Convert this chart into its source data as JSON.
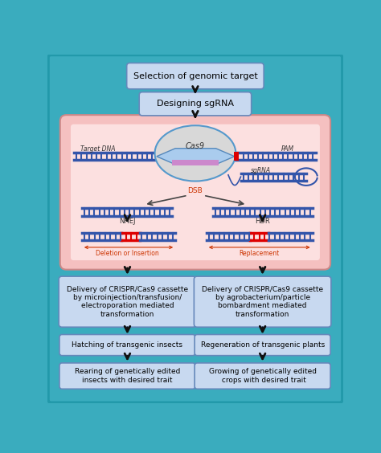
{
  "bg_color": "#3aacbe",
  "box_color": "#c8d9f0",
  "box_edge": "#6688bb",
  "pink_bg": "#f5b8b8",
  "cas9_fill": "#d8d8d8",
  "cas9_edge": "#5599cc",
  "dna_blue": "#3355aa",
  "dna_red": "#dd0000",
  "arrow_color": "#111111",
  "title": "Selection of genomic target",
  "step2": "Designing sgRNA",
  "box_left_1": "Delivery of CRISPR/Cas9 cassette\nby microinjection/transfusion/\nelectroporation mediated\ntransformation",
  "box_right_1": "Delivery of CRISPR/Cas9 cassette\nby agrobacterium/particle\nbombardment mediated\ntransformation",
  "box_left_2": "Hatching of transgenic insects",
  "box_right_2": "Regeneration of transgenic plants",
  "box_left_3": "Rearing of genetically edited\ninsects with desired trait",
  "box_right_3": "Growing of genetically edited\n crops with desired trait",
  "label_nhej": "NHEJ",
  "label_hdr": "HDR",
  "label_dsb": "DSB",
  "label_del": "Deletion or Insertion",
  "label_rep": "Replacement",
  "label_target": "Target DNA",
  "label_pam": "PAM",
  "label_sgrna": "sgRNA",
  "label_cas9": "Cas9"
}
